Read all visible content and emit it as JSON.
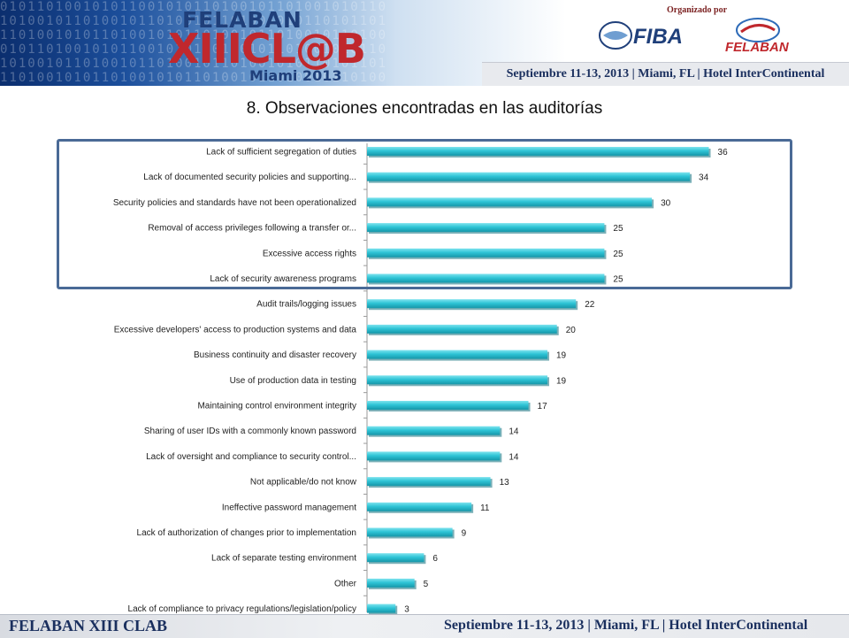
{
  "header": {
    "event_name": "FELABAN",
    "event_logo_text": "XIIICL@B",
    "event_location": "Miami 2013",
    "organizer_label": "Organizado por",
    "fiba_label": "FIBA",
    "felaban_label": "FELABAN",
    "date_venue": "Septiembre 11-13, 2013  |  Miami, FL  |  Hotel InterContinental"
  },
  "slide_title": "8. Observaciones encontradas en las auditorías",
  "chart_data": {
    "type": "bar",
    "orientation": "horizontal",
    "title": "",
    "xlabel": "",
    "ylabel": "",
    "xlim": [
      0,
      38
    ],
    "grid": false,
    "legend": "none",
    "bar_color": "#2ec4d6",
    "categories": [
      "Lack of sufficient segregation of duties",
      "Lack of documented security policies and supporting...",
      "Security policies and standards have not been operationalized",
      "Removal of access privileges following a transfer or...",
      "Excessive access rights",
      "Lack of security awareness programs",
      "Audit trails/logging issues",
      "Excessive developers' access to production systems and data",
      "Business continuity and disaster recovery",
      "Use of production data in testing",
      "Maintaining control environment integrity",
      "Sharing of user IDs with a commonly known password",
      "Lack of oversight and compliance to security control...",
      "Not applicable/do not know",
      "Ineffective password management",
      "Lack of authorization of changes prior to implementation",
      "Lack of separate testing environment",
      "Other",
      "Lack of compliance to privacy regulations/legislation/policy"
    ],
    "values": [
      36,
      34,
      30,
      25,
      25,
      25,
      22,
      20,
      19,
      19,
      17,
      14,
      14,
      13,
      11,
      9,
      6,
      5,
      3
    ],
    "highlighted_count": 6
  },
  "footer": {
    "left": "FELABAN XIII CLAB",
    "right": "Septiembre 11-13, 2013  |  Miami, FL  |  Hotel InterContinental"
  }
}
